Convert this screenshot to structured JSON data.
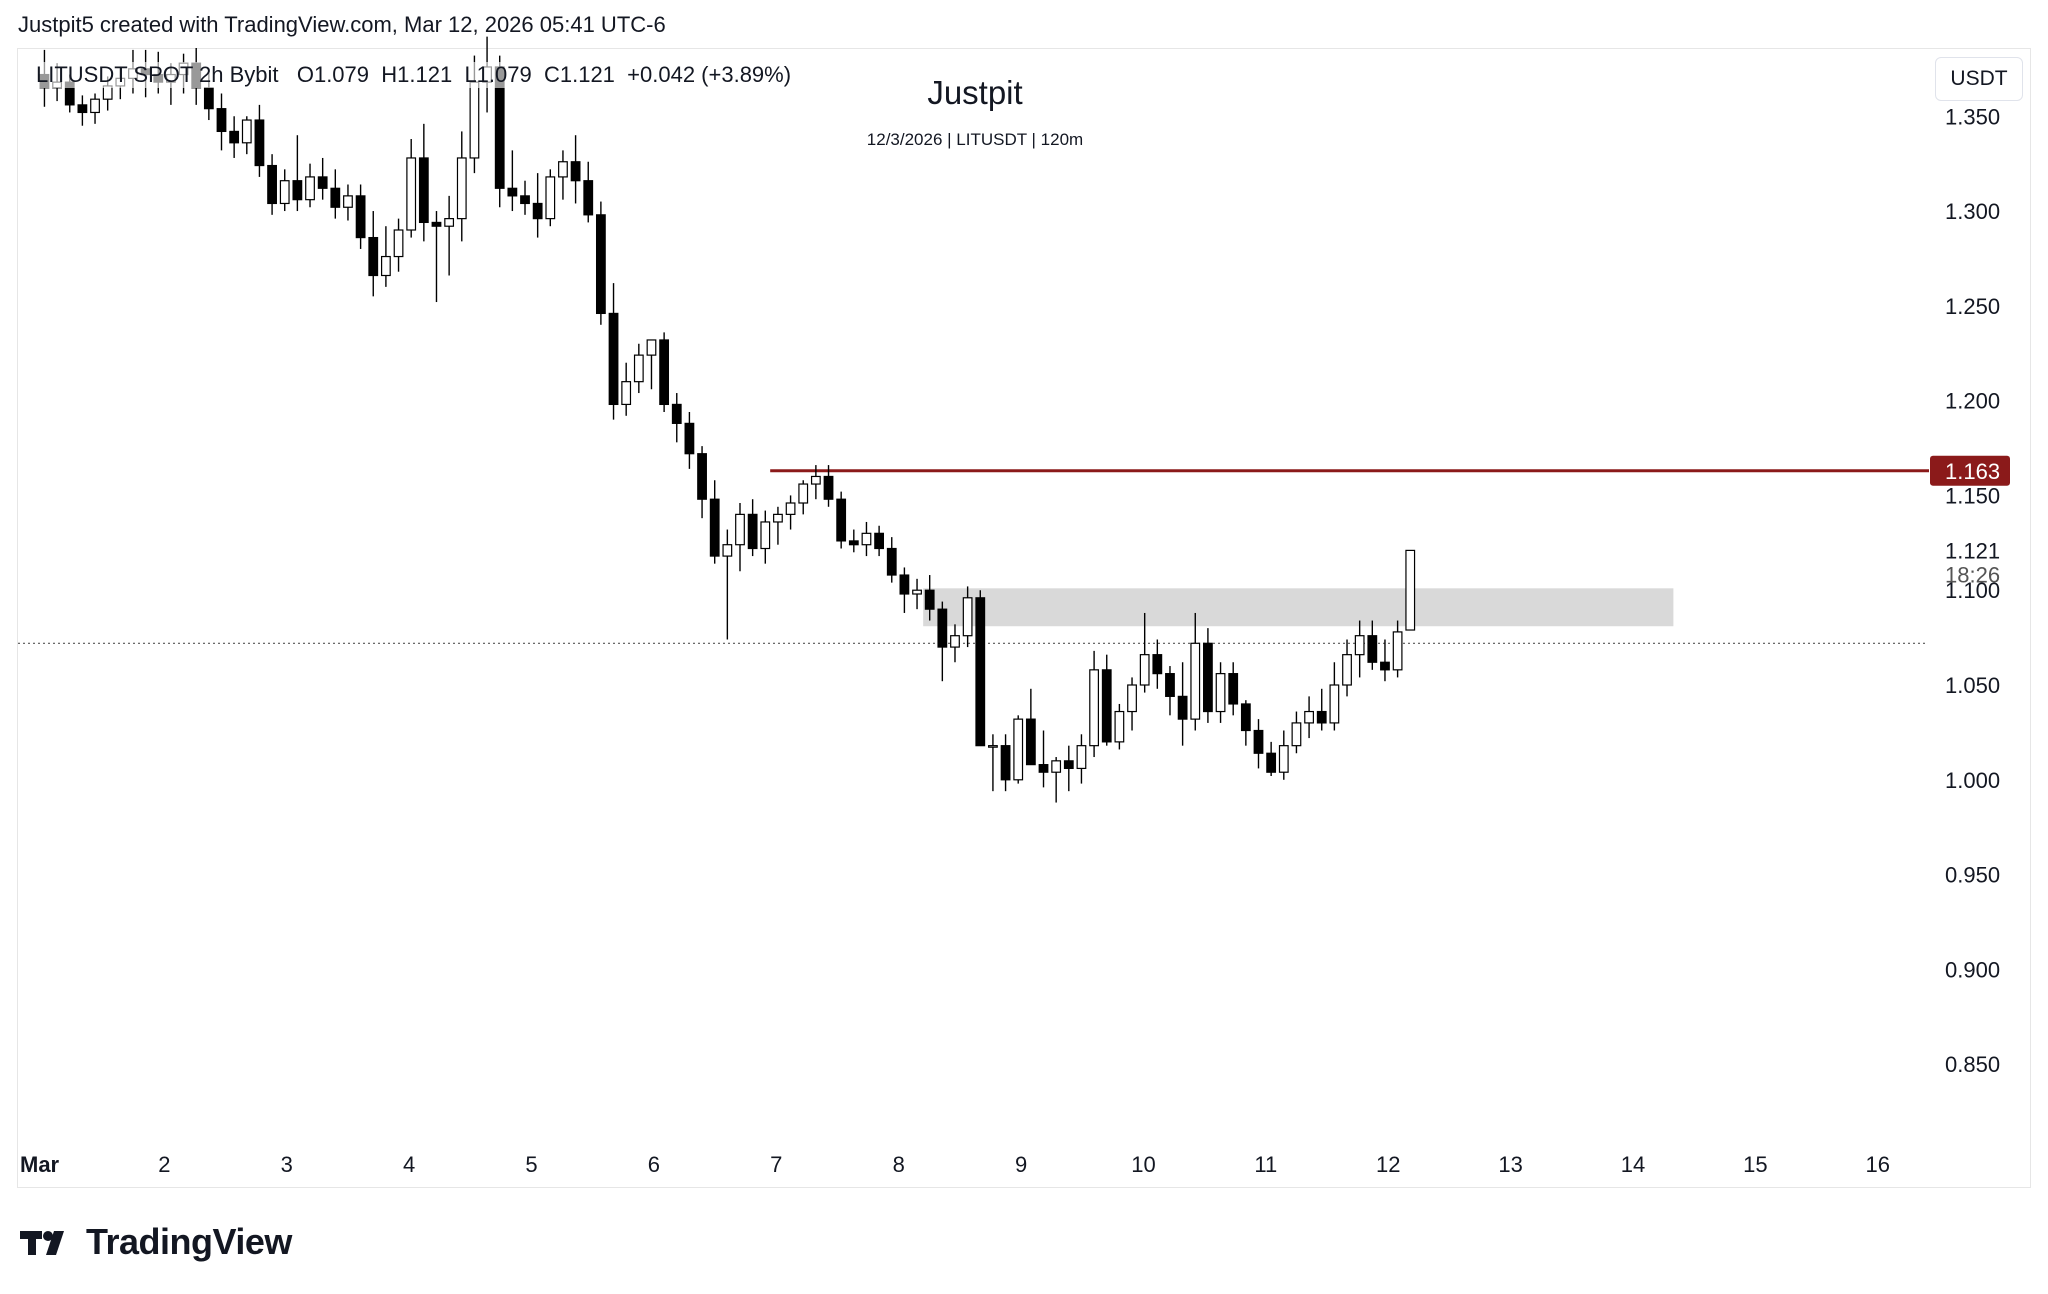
{
  "header": {
    "created_by": "Justpit5 created with TradingView.com, Mar 12, 2026 05:41 UTC-6"
  },
  "legend": {
    "symbol": "LITUSDT SPOT 2h Bybit",
    "open": "O1.079",
    "high": "H1.121",
    "low": "L1.079",
    "close": "C1.121",
    "change": "+0.042 (+3.89%)"
  },
  "watermark": {
    "title": "Justpit",
    "subtitle": "12/3/2026 | LITUSDT | 120m"
  },
  "price_axis": {
    "currency": "USDT"
  },
  "brand": {
    "name": "TradingView"
  },
  "colors": {
    "bull_fill": "#ffffff",
    "bear_fill": "#000000",
    "wick": "#000000",
    "resistance_line": "#8b1a1a",
    "zone_fill": "#d9d9d9",
    "dotted_line": "#555555",
    "axis_text": "#131722"
  },
  "chart_data": {
    "type": "candlestick",
    "title": "Justpit",
    "subtitle": "12/3/2026 | LITUSDT | 120m",
    "symbol": "LITUSDT",
    "timeframe": "2h",
    "exchange": "Bybit",
    "y_axis": {
      "ticks": [
        "1.350",
        "1.300",
        "1.250",
        "1.200",
        "1.150",
        "1.100",
        "1.050",
        "1.000",
        "0.950",
        "0.900",
        "0.850"
      ],
      "tick_values": [
        1.35,
        1.3,
        1.25,
        1.2,
        1.15,
        1.1,
        1.05,
        1.0,
        0.95,
        0.9,
        0.85
      ],
      "range": [
        0.81,
        1.386
      ]
    },
    "x_axis": {
      "ticks": [
        "Mar",
        "2",
        "3",
        "4",
        "5",
        "6",
        "7",
        "8",
        "9",
        "10",
        "11",
        "12",
        "13",
        "14",
        "15",
        "16"
      ],
      "tick_days": [
        1,
        2,
        3,
        4,
        5,
        6,
        7,
        8,
        9,
        10,
        11,
        12,
        13,
        14,
        15,
        16
      ],
      "range_days": [
        1,
        16.1
      ],
      "label_note": "day of March 2026"
    },
    "resistance": {
      "price": 1.163,
      "label": "1.163",
      "start_day": 6.95
    },
    "zone": {
      "top": 1.101,
      "bottom": 1.081,
      "start_day": 8.2,
      "end_day": 14.33
    },
    "reference_line": {
      "price": 1.072,
      "style": "dotted"
    },
    "last_price": {
      "price": 1.121,
      "label": "1.121",
      "countdown": "18:26"
    },
    "candles_ohlc": [
      [
        1.372,
        1.385,
        1.355,
        1.365
      ],
      [
        1.365,
        1.378,
        1.358,
        1.368
      ],
      [
        1.368,
        1.372,
        1.352,
        1.356
      ],
      [
        1.356,
        1.361,
        1.345,
        1.352
      ],
      [
        1.352,
        1.362,
        1.346,
        1.359
      ],
      [
        1.359,
        1.371,
        1.353,
        1.366
      ],
      [
        1.366,
        1.376,
        1.359,
        1.37
      ],
      [
        1.37,
        1.385,
        1.362,
        1.375
      ],
      [
        1.375,
        1.385,
        1.36,
        1.372
      ],
      [
        1.372,
        1.384,
        1.362,
        1.368
      ],
      [
        1.368,
        1.378,
        1.356,
        1.372
      ],
      [
        1.372,
        1.383,
        1.362,
        1.378
      ],
      [
        1.378,
        1.386,
        1.356,
        1.365
      ],
      [
        1.365,
        1.373,
        1.348,
        1.354
      ],
      [
        1.354,
        1.362,
        1.332,
        1.342
      ],
      [
        1.342,
        1.35,
        1.328,
        1.336
      ],
      [
        1.336,
        1.35,
        1.33,
        1.348
      ],
      [
        1.348,
        1.356,
        1.318,
        1.324
      ],
      [
        1.324,
        1.33,
        1.298,
        1.304
      ],
      [
        1.304,
        1.322,
        1.3,
        1.316
      ],
      [
        1.316,
        1.34,
        1.3,
        1.306
      ],
      [
        1.306,
        1.325,
        1.302,
        1.318
      ],
      [
        1.318,
        1.328,
        1.306,
        1.312
      ],
      [
        1.312,
        1.322,
        1.296,
        1.302
      ],
      [
        1.302,
        1.314,
        1.295,
        1.308
      ],
      [
        1.308,
        1.314,
        1.28,
        1.286
      ],
      [
        1.286,
        1.3,
        1.255,
        1.266
      ],
      [
        1.266,
        1.292,
        1.26,
        1.276
      ],
      [
        1.276,
        1.296,
        1.268,
        1.29
      ],
      [
        1.29,
        1.338,
        1.286,
        1.328
      ],
      [
        1.328,
        1.346,
        1.284,
        1.294
      ],
      [
        1.294,
        1.3,
        1.252,
        1.292
      ],
      [
        1.292,
        1.308,
        1.266,
        1.296
      ],
      [
        1.296,
        1.342,
        1.284,
        1.328
      ],
      [
        1.328,
        1.382,
        1.32,
        1.368
      ],
      [
        1.368,
        1.392,
        1.352,
        1.376
      ],
      [
        1.376,
        1.382,
        1.302,
        1.312
      ],
      [
        1.312,
        1.332,
        1.3,
        1.308
      ],
      [
        1.308,
        1.316,
        1.298,
        1.304
      ],
      [
        1.304,
        1.32,
        1.286,
        1.296
      ],
      [
        1.296,
        1.322,
        1.292,
        1.318
      ],
      [
        1.318,
        1.332,
        1.306,
        1.326
      ],
      [
        1.326,
        1.34,
        1.304,
        1.316
      ],
      [
        1.316,
        1.326,
        1.294,
        1.298
      ],
      [
        1.298,
        1.305,
        1.24,
        1.246
      ],
      [
        1.246,
        1.262,
        1.19,
        1.198
      ],
      [
        1.198,
        1.22,
        1.192,
        1.21
      ],
      [
        1.21,
        1.23,
        1.204,
        1.224
      ],
      [
        1.224,
        1.232,
        1.206,
        1.232
      ],
      [
        1.232,
        1.236,
        1.194,
        1.198
      ],
      [
        1.198,
        1.204,
        1.178,
        1.188
      ],
      [
        1.188,
        1.194,
        1.164,
        1.172
      ],
      [
        1.172,
        1.176,
        1.138,
        1.148
      ],
      [
        1.148,
        1.158,
        1.114,
        1.118
      ],
      [
        1.118,
        1.132,
        1.074,
        1.124
      ],
      [
        1.124,
        1.146,
        1.11,
        1.14
      ],
      [
        1.14,
        1.148,
        1.118,
        1.122
      ],
      [
        1.122,
        1.142,
        1.114,
        1.136
      ],
      [
        1.136,
        1.144,
        1.124,
        1.14
      ],
      [
        1.14,
        1.15,
        1.132,
        1.146
      ],
      [
        1.146,
        1.158,
        1.14,
        1.156
      ],
      [
        1.156,
        1.166,
        1.148,
        1.16
      ],
      [
        1.16,
        1.166,
        1.144,
        1.148
      ],
      [
        1.148,
        1.152,
        1.122,
        1.126
      ],
      [
        1.126,
        1.132,
        1.12,
        1.124
      ],
      [
        1.124,
        1.136,
        1.118,
        1.13
      ],
      [
        1.13,
        1.134,
        1.118,
        1.122
      ],
      [
        1.122,
        1.128,
        1.104,
        1.108
      ],
      [
        1.108,
        1.112,
        1.088,
        1.098
      ],
      [
        1.098,
        1.106,
        1.09,
        1.1
      ],
      [
        1.1,
        1.108,
        1.084,
        1.09
      ],
      [
        1.09,
        1.094,
        1.052,
        1.07
      ],
      [
        1.07,
        1.082,
        1.062,
        1.076
      ],
      [
        1.076,
        1.102,
        1.07,
        1.096
      ],
      [
        1.096,
        1.1,
        1.018,
        1.018
      ],
      [
        1.018,
        1.024,
        0.994,
        1.018
      ],
      [
        1.018,
        1.024,
        0.994,
        1.0
      ],
      [
        1.0,
        1.034,
        0.998,
        1.032
      ],
      [
        1.032,
        1.048,
        1.008,
        1.008
      ],
      [
        1.008,
        1.026,
        0.996,
        1.004
      ],
      [
        1.004,
        1.012,
        0.988,
        1.01
      ],
      [
        1.01,
        1.018,
        0.994,
        1.006
      ],
      [
        1.006,
        1.024,
        0.998,
        1.018
      ],
      [
        1.018,
        1.068,
        1.012,
        1.058
      ],
      [
        1.058,
        1.066,
        1.018,
        1.02
      ],
      [
        1.02,
        1.04,
        1.016,
        1.036
      ],
      [
        1.036,
        1.054,
        1.026,
        1.05
      ],
      [
        1.05,
        1.088,
        1.046,
        1.066
      ],
      [
        1.066,
        1.074,
        1.048,
        1.056
      ],
      [
        1.056,
        1.06,
        1.034,
        1.044
      ],
      [
        1.044,
        1.062,
        1.018,
        1.032
      ],
      [
        1.032,
        1.088,
        1.026,
        1.072
      ],
      [
        1.072,
        1.08,
        1.03,
        1.036
      ],
      [
        1.036,
        1.062,
        1.03,
        1.056
      ],
      [
        1.056,
        1.062,
        1.034,
        1.04
      ],
      [
        1.04,
        1.042,
        1.018,
        1.026
      ],
      [
        1.026,
        1.032,
        1.006,
        1.014
      ],
      [
        1.014,
        1.02,
        1.002,
        1.004
      ],
      [
        1.004,
        1.026,
        1.0,
        1.018
      ],
      [
        1.018,
        1.036,
        1.014,
        1.03
      ],
      [
        1.03,
        1.044,
        1.022,
        1.036
      ],
      [
        1.036,
        1.048,
        1.026,
        1.03
      ],
      [
        1.03,
        1.062,
        1.026,
        1.05
      ],
      [
        1.05,
        1.074,
        1.044,
        1.066
      ],
      [
        1.066,
        1.084,
        1.054,
        1.076
      ],
      [
        1.076,
        1.084,
        1.058,
        1.062
      ],
      [
        1.062,
        1.074,
        1.052,
        1.058
      ],
      [
        1.058,
        1.084,
        1.054,
        1.078
      ],
      [
        1.079,
        1.121,
        1.079,
        1.121
      ]
    ]
  }
}
